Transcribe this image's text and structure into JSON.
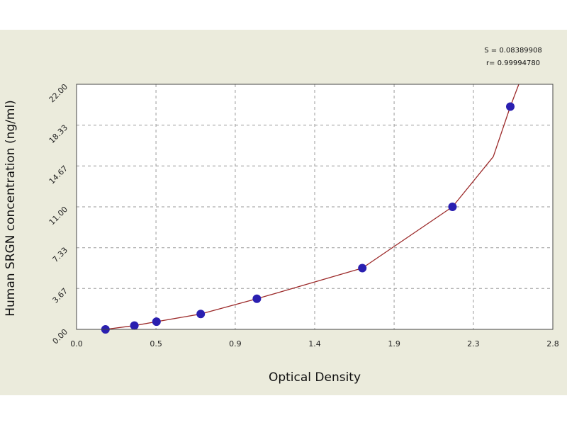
{
  "chart_data": {
    "type": "scatter",
    "xlabel": "Optical Density",
    "ylabel": "Human SRGN concentration (ng/ml)",
    "xlim": [
      0.0,
      2.8
    ],
    "ylim": [
      0.0,
      22.0
    ],
    "x_ticks": [
      "0.0",
      "0.5",
      "0.9",
      "1.4",
      "1.9",
      "2.3",
      "2.8"
    ],
    "x_tick_values": [
      0.0,
      0.467,
      0.933,
      1.4,
      1.867,
      2.333,
      2.8
    ],
    "y_ticks": [
      "0.00",
      "3.67",
      "7.33",
      "11.00",
      "14.67",
      "18.33",
      "22.00"
    ],
    "y_tick_values": [
      0.0,
      3.67,
      7.33,
      11.0,
      14.67,
      18.33,
      22.0
    ],
    "grid": true,
    "stats": [
      "S = 0.08389908",
      "r= 0.99994780"
    ],
    "points": {
      "x": [
        0.17,
        0.34,
        0.47,
        0.73,
        1.06,
        1.68,
        2.21,
        2.55
      ],
      "y": [
        0.0,
        0.34,
        0.69,
        1.38,
        2.75,
        5.5,
        11.0,
        20.0
      ]
    },
    "fit_curve": {
      "x": [
        0.17,
        0.34,
        0.47,
        0.73,
        1.06,
        1.68,
        2.21,
        2.45,
        2.55,
        2.6
      ],
      "y": [
        0.0,
        0.34,
        0.69,
        1.38,
        2.75,
        5.5,
        11.0,
        15.5,
        20.0,
        22.0
      ]
    },
    "colors": {
      "point": "#2a1fb0",
      "curve": "#9c2a2a",
      "grid": "#9a9a9a",
      "plot_bg": "#ffffff",
      "panel_bg": "#ebebdc"
    }
  }
}
